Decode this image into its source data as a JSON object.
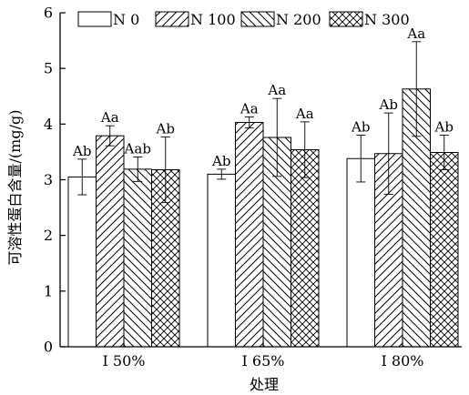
{
  "chart_data": {
    "type": "bar",
    "title": "",
    "xlabel": "处理",
    "ylabel": "可溶性蛋白含量/(mg/g)",
    "ylim": [
      0,
      6
    ],
    "yticks": [
      "0",
      "1",
      "2",
      "3",
      "4",
      "5",
      "6"
    ],
    "grid": false,
    "legend_position": "top",
    "categories": [
      "I 50%",
      "I 65%",
      "I 80%"
    ],
    "series": [
      {
        "name": "N 0",
        "pattern": "empty",
        "values": [
          3.05,
          3.1,
          3.38
        ],
        "errors": [
          0.32,
          0.09,
          0.42
        ],
        "labels": [
          "Ab",
          "Ab",
          "Ab"
        ]
      },
      {
        "name": "N 100",
        "pattern": "forward-hatch",
        "values": [
          3.79,
          4.03,
          3.47
        ],
        "errors": [
          0.18,
          0.1,
          0.73
        ],
        "labels": [
          "Aa",
          "Aa",
          "Ab"
        ]
      },
      {
        "name": "N 200",
        "pattern": "back-hatch",
        "values": [
          3.19,
          3.76,
          4.63
        ],
        "errors": [
          0.22,
          0.7,
          0.85
        ],
        "labels": [
          "Aab",
          "Aa",
          "Aa"
        ]
      },
      {
        "name": "N 300",
        "pattern": "cross-hatch",
        "values": [
          3.18,
          3.54,
          3.49
        ],
        "errors": [
          0.59,
          0.5,
          0.31
        ],
        "labels": [
          "Ab",
          "Aa",
          "Ab"
        ]
      }
    ]
  }
}
